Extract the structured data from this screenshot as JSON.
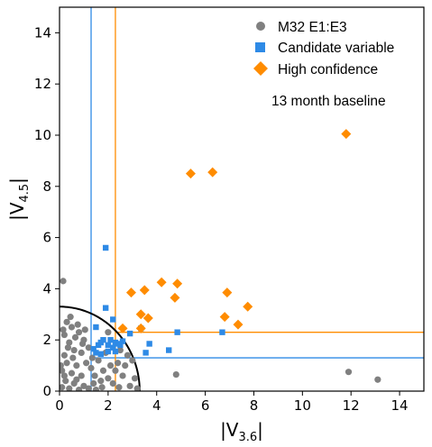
{
  "chart_data": {
    "type": "scatter",
    "xlabel": {
      "main": "|V",
      "sub": "3.6",
      "end": "|"
    },
    "ylabel": {
      "main": "|V",
      "sub": "4.5",
      "end": "|"
    },
    "xlim": [
      0,
      15
    ],
    "ylim": [
      0,
      15
    ],
    "xticks": [
      "0",
      "2",
      "4",
      "6",
      "8",
      "10",
      "12",
      "14"
    ],
    "yticks": [
      "0",
      "2",
      "4",
      "6",
      "8",
      "10",
      "12",
      "14"
    ],
    "grid": false,
    "legend_position": "top-right",
    "annotation": "13 month baseline",
    "colors": {
      "grey": "#808080",
      "blue": "#2e8ae6",
      "orange": "#ff8c00",
      "curve": "#000000"
    },
    "threshold_lines": {
      "blue": {
        "x": 1.3,
        "y": 1.3
      },
      "orange": {
        "x": 2.3,
        "y": 2.3
      }
    },
    "circle_radius": 3.3,
    "series": [
      {
        "name": "M32 E1:E3",
        "marker": "circle",
        "points": [
          [
            0.15,
            4.3
          ],
          [
            0.3,
            2.7
          ],
          [
            0.5,
            2.5
          ],
          [
            0.2,
            2.2
          ],
          [
            0.8,
            2.3
          ],
          [
            0.4,
            1.9
          ],
          [
            1.0,
            2.0
          ],
          [
            0.6,
            1.6
          ],
          [
            0.2,
            1.4
          ],
          [
            0.9,
            1.5
          ],
          [
            1.2,
            1.7
          ],
          [
            0.3,
            1.1
          ],
          [
            0.7,
            1.0
          ],
          [
            1.1,
            1.1
          ],
          [
            0.1,
            0.8
          ],
          [
            0.5,
            0.7
          ],
          [
            0.9,
            0.6
          ],
          [
            1.3,
            0.9
          ],
          [
            1.6,
            1.2
          ],
          [
            1.8,
            0.8
          ],
          [
            2.0,
            0.5
          ],
          [
            0.25,
            0.4
          ],
          [
            0.6,
            0.3
          ],
          [
            1.0,
            0.2
          ],
          [
            1.4,
            0.3
          ],
          [
            1.7,
            0.4
          ],
          [
            2.2,
            0.3
          ],
          [
            2.6,
            0.6
          ],
          [
            2.9,
            0.2
          ],
          [
            3.2,
            0.1
          ],
          [
            0.1,
            0.15
          ],
          [
            0.4,
            0.1
          ],
          [
            0.8,
            0.05
          ],
          [
            1.2,
            0.1
          ],
          [
            1.5,
            0.05
          ],
          [
            0.35,
            1.7
          ],
          [
            0.65,
            2.1
          ],
          [
            0.05,
            1.0
          ],
          [
            0.95,
            1.85
          ],
          [
            1.35,
            1.3
          ],
          [
            2.1,
            1.0
          ],
          [
            2.4,
            1.1
          ],
          [
            2.7,
            1.0
          ],
          [
            2.3,
            0.8
          ],
          [
            3.0,
            1.2
          ],
          [
            2.5,
            1.6
          ],
          [
            2.8,
            1.4
          ],
          [
            1.9,
            1.5
          ],
          [
            3.1,
            0.5
          ],
          [
            2.0,
            2.3
          ],
          [
            0.45,
            2.9
          ],
          [
            0.15,
            2.4
          ],
          [
            0.75,
            2.6
          ],
          [
            1.05,
            2.4
          ],
          [
            0.55,
            1.3
          ],
          [
            0.2,
            0.6
          ],
          [
            0.7,
            0.45
          ],
          [
            1.45,
            0.6
          ],
          [
            1.75,
            0.15
          ],
          [
            2.45,
            0.15
          ],
          [
            4.8,
            0.65
          ],
          [
            11.9,
            0.75
          ],
          [
            13.1,
            0.45
          ]
        ]
      },
      {
        "name": "Candidate variable",
        "marker": "square",
        "points": [
          [
            1.9,
            5.6
          ],
          [
            1.9,
            3.25
          ],
          [
            2.2,
            2.8
          ],
          [
            1.5,
            2.5
          ],
          [
            1.4,
            1.65
          ],
          [
            1.6,
            1.8
          ],
          [
            1.7,
            1.9
          ],
          [
            1.8,
            2.0
          ],
          [
            2.0,
            1.8
          ],
          [
            2.1,
            2.0
          ],
          [
            2.2,
            1.7
          ],
          [
            2.3,
            1.9
          ],
          [
            2.4,
            1.85
          ],
          [
            2.5,
            1.8
          ],
          [
            2.6,
            1.95
          ],
          [
            2.0,
            1.55
          ],
          [
            1.5,
            1.5
          ],
          [
            1.7,
            1.45
          ],
          [
            2.3,
            1.55
          ],
          [
            2.9,
            2.25
          ],
          [
            3.7,
            1.85
          ],
          [
            3.55,
            1.5
          ],
          [
            4.5,
            1.6
          ],
          [
            4.85,
            2.3
          ],
          [
            6.7,
            2.3
          ],
          [
            3.35,
            2.45
          ]
        ]
      },
      {
        "name": "High confidence",
        "marker": "diamond",
        "points": [
          [
            11.8,
            10.05
          ],
          [
            5.4,
            8.5
          ],
          [
            6.3,
            8.55
          ],
          [
            4.2,
            4.25
          ],
          [
            3.5,
            3.95
          ],
          [
            2.95,
            3.85
          ],
          [
            4.85,
            4.2
          ],
          [
            4.75,
            3.65
          ],
          [
            3.35,
            3.0
          ],
          [
            3.65,
            2.85
          ],
          [
            6.9,
            3.85
          ],
          [
            7.75,
            3.3
          ],
          [
            6.8,
            2.9
          ],
          [
            7.35,
            2.6
          ],
          [
            2.6,
            2.45
          ],
          [
            3.35,
            2.45
          ]
        ]
      }
    ]
  }
}
